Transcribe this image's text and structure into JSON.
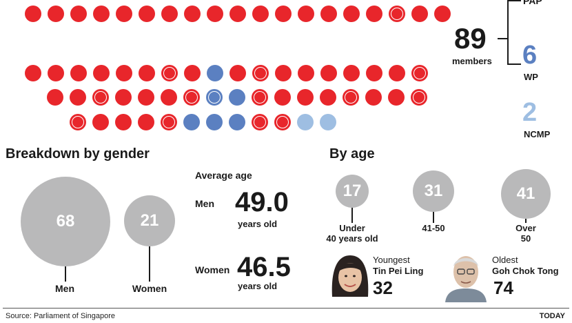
{
  "colors": {
    "pap": "#e8262b",
    "wp": "#5b80c1",
    "ncmp": "#9ebee2",
    "bubble": "#b9b9ba"
  },
  "seats": {
    "row_top": [
      "pap",
      "pap",
      "pap",
      "pap",
      "pap",
      "pap",
      "pap",
      "pap",
      "pap",
      "pap",
      "pap",
      "pap",
      "pap",
      "pap",
      "pap",
      "pap",
      "pap-ring",
      "pap",
      "pap"
    ],
    "row_a": [
      "pap",
      "pap",
      "pap",
      "pap",
      "pap",
      "pap",
      "pap-ring",
      "pap",
      "wp",
      "pap",
      "pap-ring",
      "pap",
      "pap",
      "pap",
      "pap",
      "pap",
      "pap",
      "pap-ring"
    ],
    "row_b": [
      "pap",
      "pap",
      "pap-ring",
      "pap",
      "pap",
      "pap",
      "pap-ring",
      "wp-ring",
      "wp",
      "pap-ring",
      "pap",
      "pap",
      "pap",
      "pap-ring",
      "pap",
      "pap",
      "pap-ring"
    ],
    "row_c": [
      "pap-ring",
      "pap",
      "pap",
      "pap",
      "pap-ring",
      "wp",
      "wp",
      "wp",
      "pap-ring",
      "pap-ring",
      "ncmp",
      "ncmp"
    ]
  },
  "summary": {
    "total": "89",
    "total_label": "members",
    "pap_label": "PAP",
    "wp_count": "6",
    "wp_label": "WP",
    "ncmp_count": "2",
    "ncmp_label": "NCMP"
  },
  "gender": {
    "heading": "Breakdown by gender",
    "men_count": "68",
    "men_label": "Men",
    "women_count": "21",
    "women_label": "Women"
  },
  "average_age": {
    "heading": "Average age",
    "men_label": "Men",
    "men_value": "49.0",
    "men_unit": "years old",
    "women_label": "Women",
    "women_value": "46.5",
    "women_unit": "years old"
  },
  "by_age": {
    "heading": "By age",
    "groups": [
      {
        "count": "17",
        "label_1": "Under",
        "label_2": "40 years old"
      },
      {
        "count": "31",
        "label_1": "41-50",
        "label_2": ""
      },
      {
        "count": "41",
        "label_1": "Over",
        "label_2": "50"
      }
    ],
    "youngest_title": "Youngest",
    "youngest_name": "Tin Pei Ling",
    "youngest_age": "32",
    "oldest_title": "Oldest",
    "oldest_name": "Goh Chok Tong",
    "oldest_age": "74"
  },
  "footer": {
    "source": "Source: Parliament of Singapore",
    "brand": "TODAY"
  }
}
